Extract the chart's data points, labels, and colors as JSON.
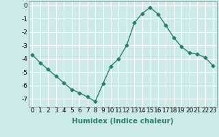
{
  "x": [
    0,
    1,
    2,
    3,
    4,
    5,
    6,
    7,
    8,
    9,
    10,
    11,
    12,
    13,
    14,
    15,
    16,
    17,
    18,
    19,
    20,
    21,
    22,
    23
  ],
  "y": [
    -3.7,
    -4.3,
    -4.8,
    -5.3,
    -5.8,
    -6.3,
    -6.55,
    -6.85,
    -7.2,
    -5.85,
    -4.55,
    -4.0,
    -3.0,
    -1.3,
    -0.6,
    -0.15,
    -0.65,
    -1.5,
    -2.4,
    -3.1,
    -3.55,
    -3.65,
    -3.9,
    -4.5
  ],
  "line_color": "#2d7d6d",
  "marker": "D",
  "marker_size": 2.5,
  "bg_color": "#cceaea",
  "grid_color": "#ffffff",
  "xlabel": "Humidex (Indice chaleur)",
  "ylim": [
    -7.6,
    0.3
  ],
  "xlim": [
    -0.5,
    23.5
  ],
  "yticks": [
    0,
    -1,
    -2,
    -3,
    -4,
    -5,
    -6,
    -7
  ],
  "xticks": [
    0,
    1,
    2,
    3,
    4,
    5,
    6,
    7,
    8,
    9,
    10,
    11,
    12,
    13,
    14,
    15,
    16,
    17,
    18,
    19,
    20,
    21,
    22,
    23
  ],
  "xlabel_fontsize": 7.5,
  "tick_fontsize": 6.5,
  "line_width": 1.0
}
